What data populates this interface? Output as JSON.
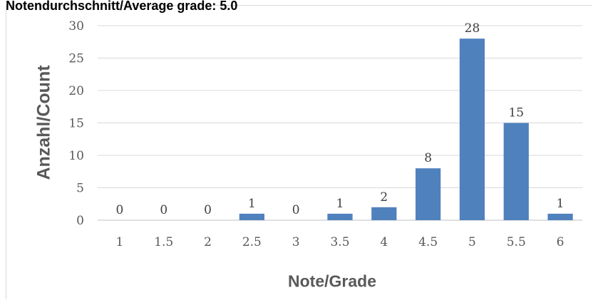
{
  "chart_data": {
    "type": "bar",
    "title": "Notendurchschnitt/Average grade: 5.0",
    "xlabel": "Note/Grade",
    "ylabel": "Anzahl/Count",
    "categories": [
      "1",
      "1.5",
      "2",
      "2.5",
      "3",
      "3.5",
      "4",
      "4.5",
      "5",
      "5.5",
      "6"
    ],
    "values": [
      0,
      0,
      0,
      1,
      0,
      1,
      2,
      8,
      28,
      15,
      1
    ],
    "ylim": [
      0,
      30
    ],
    "yticks": [
      "0",
      "5",
      "10",
      "15",
      "20",
      "25",
      "30"
    ],
    "grid": true,
    "bar_color": "#4f81bd"
  }
}
